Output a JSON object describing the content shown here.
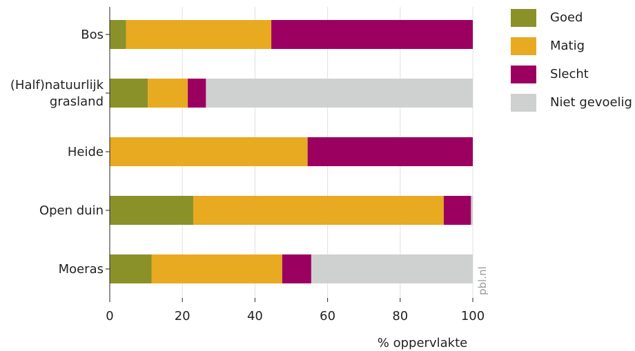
{
  "chart_data": {
    "type": "bar",
    "orientation": "horizontal",
    "stacked": true,
    "categories": [
      "Bos",
      "(Half)natuurlijk grasland",
      "Heide",
      "Open duin",
      "Moeras"
    ],
    "category_lines": [
      [
        "Bos"
      ],
      [
        "(Half)natuurlijk",
        "grasland"
      ],
      [
        "Heide"
      ],
      [
        "Open duin"
      ],
      [
        "Moeras"
      ]
    ],
    "series": [
      {
        "name": "Goed",
        "color": "#8a9128",
        "values": [
          4.5,
          10.5,
          0,
          23,
          11.5
        ]
      },
      {
        "name": "Matig",
        "color": "#e7aa21",
        "values": [
          40,
          11,
          54.5,
          69,
          36
        ]
      },
      {
        "name": "Slecht",
        "color": "#9b0061",
        "values": [
          55.5,
          5,
          45.5,
          7.5,
          8
        ]
      },
      {
        "name": "Niet gevoelig",
        "color": "#cfd0d0",
        "values": [
          0,
          73.5,
          0,
          0.5,
          44.5
        ]
      }
    ],
    "xlabel": "% oppervlakte",
    "xlim": [
      0,
      100
    ],
    "xticks": [
      "0",
      "20",
      "40",
      "60",
      "80",
      "100"
    ],
    "grid": "vertical",
    "legend_position": "top-right",
    "watermark": "pbl.nl"
  }
}
